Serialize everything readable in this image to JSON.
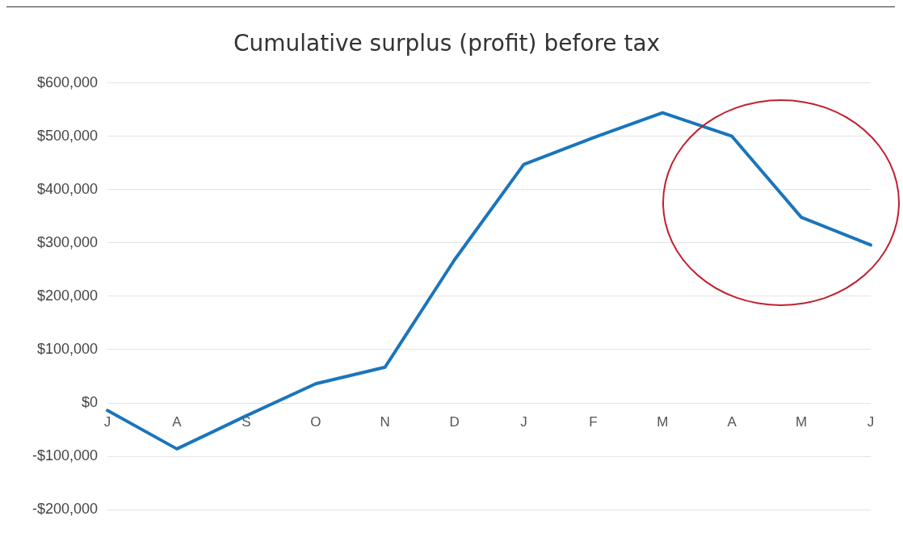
{
  "chart_data": {
    "type": "line",
    "title": "Cumulative surplus (profit) before tax",
    "categories": [
      "J",
      "A",
      "S",
      "O",
      "N",
      "D",
      "J",
      "F",
      "M",
      "A",
      "M",
      "J"
    ],
    "series": [
      {
        "color": "#1a75bc",
        "values": [
          -14000,
          -86000,
          -24000,
          36000,
          67000,
          268000,
          447000,
          497000,
          544000,
          500000,
          348000,
          296000
        ]
      }
    ],
    "ylim": [
      -200000,
      600000
    ],
    "yticks": [
      {
        "value": -200000,
        "label": "-$200,000"
      },
      {
        "value": -100000,
        "label": "-$100,000"
      },
      {
        "value": 0,
        "label": "$0"
      },
      {
        "value": 100000,
        "label": "$100,000"
      },
      {
        "value": 200000,
        "label": "$200,000"
      },
      {
        "value": 300000,
        "label": "$300,000"
      },
      {
        "value": 400000,
        "label": "$400,000"
      },
      {
        "value": 500000,
        "label": "$500,000"
      },
      {
        "value": 600000,
        "label": "$600,000"
      }
    ],
    "grid": "y",
    "legend": false,
    "marker": "none",
    "line_style": "solid"
  }
}
